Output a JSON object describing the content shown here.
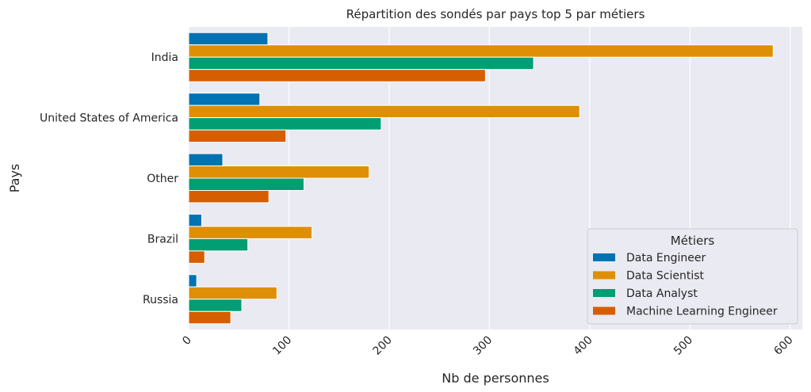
{
  "chart_data": {
    "type": "bar",
    "orientation": "horizontal",
    "title": "Répartition des sondés par pays top 5 par métiers",
    "xlabel": "Nb de personnes",
    "ylabel": "Pays",
    "xlim": [
      0,
      612
    ],
    "xticks": [
      "0",
      "100",
      "200",
      "300",
      "400",
      "500",
      "600"
    ],
    "xtick_values": [
      0,
      100,
      200,
      300,
      400,
      500,
      600
    ],
    "categories": [
      "India",
      "United States of America",
      "Other",
      "Brazil",
      "Russia"
    ],
    "legend_title": "Métiers",
    "legend_position": "lower-right",
    "grid": true,
    "series": [
      {
        "name": "Data Engineer",
        "color": "#0173b2",
        "values": [
          79,
          71,
          34,
          13,
          8
        ]
      },
      {
        "name": "Data Scientist",
        "color": "#de8f05",
        "values": [
          583,
          390,
          180,
          123,
          88
        ]
      },
      {
        "name": "Data Analyst",
        "color": "#029e73",
        "values": [
          344,
          192,
          115,
          59,
          53
        ]
      },
      {
        "name": "Machine Learning Engineer",
        "color": "#d55e00",
        "values": [
          296,
          97,
          80,
          16,
          42
        ]
      }
    ]
  }
}
